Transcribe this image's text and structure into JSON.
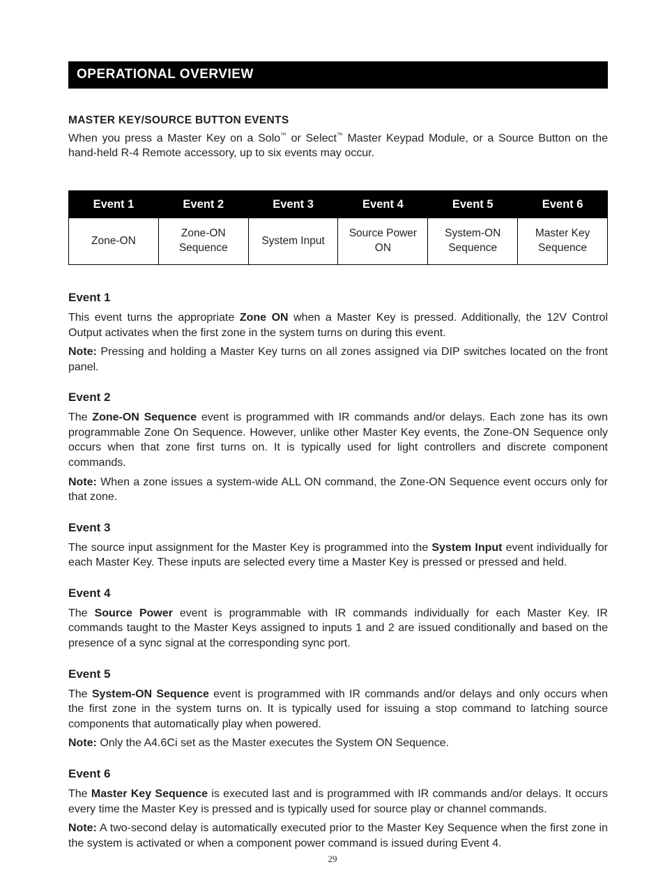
{
  "page": {
    "number": "29",
    "title_bar": "OPERATIONAL OVERVIEW"
  },
  "intro": {
    "heading": "MASTER KEY/SOURCE BUTTON EVENTS",
    "text_before_tm1": "When you press a Master Key on a Solo",
    "tm1": "™",
    "text_between_tm": " or Select",
    "tm2": "™",
    "text_after_tm2": " Master Keypad Module, or a Source Button on the hand-held R-4 Remote accessory, up to six events may occur."
  },
  "table": {
    "headers": [
      "Event 1",
      "Event 2",
      "Event 3",
      "Event 4",
      "Event 5",
      "Event 6"
    ],
    "cells": [
      "Zone-ON",
      "Zone-ON Sequence",
      "System Input",
      "Source Power ON",
      "System-ON Sequence",
      "Master Key Sequence"
    ]
  },
  "events": {
    "e1": {
      "title": "Event 1",
      "p1_a": "This event turns the appropriate ",
      "p1_bold": "Zone ON",
      "p1_b": " when a Master Key is pressed. Additionally, the 12V Control Output activates when the first zone in the system turns on during this event.",
      "note_label": "Note:",
      "note_text": " Pressing and holding a Master Key turns on all zones assigned via DIP switches located on the front panel."
    },
    "e2": {
      "title": "Event 2",
      "p1_a": "The ",
      "p1_bold": "Zone-ON Sequence",
      "p1_b": " event is programmed with IR commands and/or delays. Each zone has its own programmable Zone On Sequence. However, unlike other Master Key events, the Zone-ON Sequence only occurs when that zone first turns on. It is typically used for light controllers and discrete component commands.",
      "note_label": "Note:",
      "note_text": " When a zone issues a system-wide ALL ON command, the Zone-ON Sequence event occurs only for that zone."
    },
    "e3": {
      "title": "Event 3",
      "p1_a": "The source input assignment for the Master Key is programmed into the ",
      "p1_bold": "System Input",
      "p1_b": " event individually for each Master Key. These inputs are selected every time a Master Key is pressed or pressed and held."
    },
    "e4": {
      "title": "Event 4",
      "p1_a": "The ",
      "p1_bold": "Source Power",
      "p1_b": " event is programmable with IR commands individually for each Master Key. IR commands taught to the Master Keys assigned to inputs 1 and 2 are issued conditionally and based on the presence of a sync signal at the corresponding sync port."
    },
    "e5": {
      "title": "Event 5",
      "p1_a": "The ",
      "p1_bold": "System-ON Sequence",
      "p1_b": " event is programmed with IR commands and/or delays and only occurs when the first zone in the system turns on. It is typically used for issuing a stop command to latching source components that automatically play when powered.",
      "note_label": "Note:",
      "note_text": " Only the A4.6Ci set as the Master executes the System ON Sequence."
    },
    "e6": {
      "title": "Event 6",
      "p1_a": "The ",
      "p1_bold": "Master Key Sequence",
      "p1_b": " is executed last and is programmed with IR commands and/or delays. It occurs every time the Master Key is pressed and is typically used for source play or channel commands.",
      "note_label": "Note:",
      "note_text": " A two-second delay is automatically executed prior to the Master Key Sequence when the first zone in the system is activated or when a component power command is issued during Event 4."
    }
  }
}
